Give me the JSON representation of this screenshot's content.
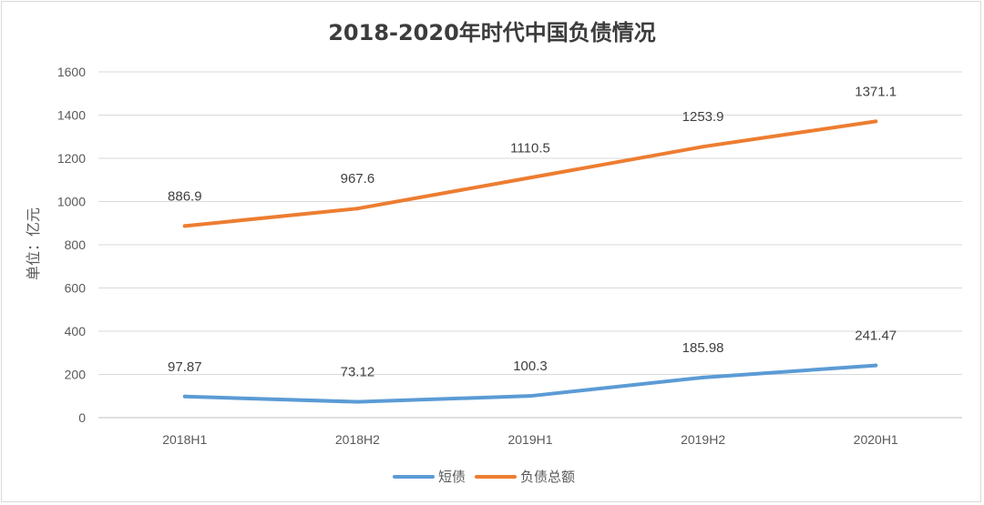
{
  "chart_data": {
    "type": "line",
    "title": "2018-2020年时代中国负债情况",
    "ylabel": "单位：亿元",
    "xlabel": "",
    "categories": [
      "2018H1",
      "2018H2",
      "2019H1",
      "2019H2",
      "2020H1"
    ],
    "ylim": [
      0,
      1600
    ],
    "yticks": [
      0,
      200,
      400,
      600,
      800,
      1000,
      1200,
      1400,
      1600
    ],
    "grid": true,
    "legend_position": "bottom",
    "series": [
      {
        "name": "短债",
        "color": "#5b9bd5",
        "values": [
          97.87,
          73.12,
          100.3,
          185.98,
          241.47
        ],
        "labels": [
          "97.87",
          "73.12",
          "100.3",
          "185.98",
          "241.47"
        ]
      },
      {
        "name": "负债总额",
        "color": "#ed7d31",
        "values": [
          886.9,
          967.6,
          1110.5,
          1253.9,
          1371.1
        ],
        "labels": [
          "886.9",
          "967.6",
          "1110.5",
          "1253.9",
          "1371.1"
        ]
      }
    ]
  }
}
